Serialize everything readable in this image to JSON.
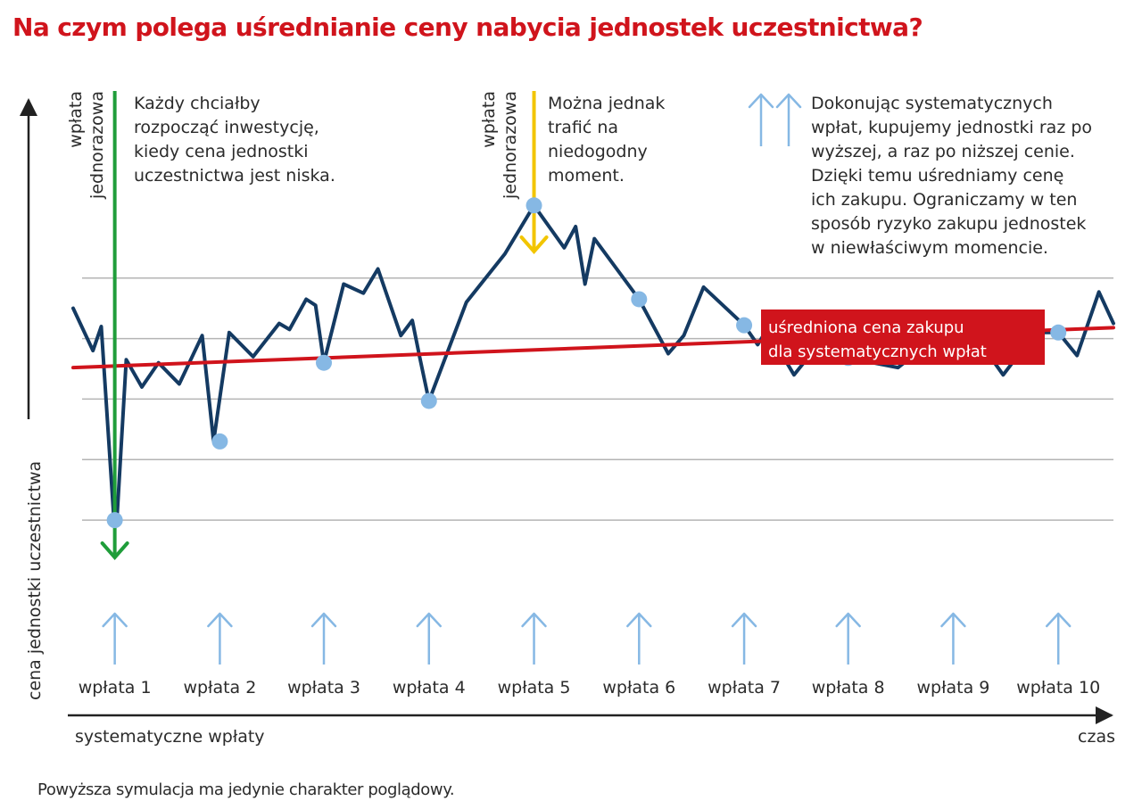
{
  "title": "Na czym polega uśrednianie ceny nabycia jednostek uczestnictwa?",
  "footnote": "Powyższa symulacja ma jedynie charakter poglądowy.",
  "colors": {
    "title": "#d0141c",
    "price_line": "#143a62",
    "avg_line": "#d0141c",
    "purchase_marker": "#86b8e4",
    "lump_good": "#1f9d3a",
    "lump_bad": "#f2c500",
    "grid": "#b4b4b4",
    "axis": "#222222",
    "text": "#2b2b2b"
  },
  "annotations": {
    "lump_sum_good": {
      "label": [
        "wpłata",
        "jednorazowa"
      ],
      "text": [
        "Każdy chciałby",
        "rozpocząć inwestycję,",
        "kiedy cena jednostki",
        "uczestnictwa jest niska."
      ]
    },
    "lump_sum_bad": {
      "label": [
        "wpłata",
        "jednorazowa"
      ],
      "text": [
        "Można jednak",
        "trafić na",
        "niedogodny",
        "moment."
      ]
    },
    "systematic": {
      "text": [
        "Dokonując systematycznych",
        "wpłat, kupujemy jednostki raz po",
        "wyższej, a raz po niższej cenie.",
        "Dzięki temu uśredniamy cenę",
        "ich zakupu. Ograniczamy w ten",
        "sposób ryzyko zakupu jednostek",
        "w niewłaściwym momencie."
      ]
    },
    "avg_price_box": [
      "uśredniona cena zakupu",
      "dla systematycznych wpłat"
    ]
  },
  "chart_data": {
    "type": "line",
    "title": "Na czym polega uśrednianie ceny nabycia jednostek uczestnictwa?",
    "xlabel_left": "systematyczne wpłaty",
    "xlabel_right": "czas",
    "ylabel": "cena jednostki uczestnictwa",
    "xlim": [
      0,
      100
    ],
    "ylim": [
      0,
      7
    ],
    "grid": true,
    "categories": [
      "wpłata 1",
      "wpłata 2",
      "wpłata 3",
      "wpłata 4",
      "wpłata 5",
      "wpłata 6",
      "wpłata 7",
      "wpłata 8",
      "wpłata 9",
      "wpłata 10"
    ],
    "purchase_x": [
      4.0,
      14.1,
      24.1,
      34.2,
      44.3,
      54.4,
      64.5,
      74.5,
      84.6,
      94.7
    ],
    "purchase_y": [
      1.0,
      2.3,
      3.6,
      2.97,
      6.2,
      4.65,
      4.22,
      3.68,
      3.88,
      4.1
    ],
    "series": [
      {
        "key": "price",
        "x": [
          0.0,
          1.9,
          2.7,
          3.9,
          4.2,
          5.1,
          6.6,
          8.2,
          10.2,
          12.4,
          13.5,
          15.0,
          17.3,
          19.8,
          20.8,
          22.4,
          23.3,
          24.1,
          26.0,
          27.9,
          29.3,
          31.5,
          32.6,
          33.3,
          34.2,
          37.8,
          41.5,
          44.3,
          47.2,
          48.3,
          49.2,
          50.1,
          54.4,
          57.2,
          58.7,
          60.6,
          64.5,
          65.8,
          66.7,
          69.3,
          72.0,
          73.6,
          74.5,
          79.3,
          81.2,
          84.6,
          86.5,
          89.4,
          92.5,
          94.7,
          96.5,
          98.6,
          100.0
        ],
        "y": [
          4.5,
          3.8,
          4.2,
          1.05,
          1.0,
          3.65,
          3.2,
          3.6,
          3.25,
          4.05,
          2.3,
          4.1,
          3.7,
          4.25,
          4.15,
          4.65,
          4.55,
          3.6,
          4.9,
          4.75,
          5.15,
          4.05,
          4.3,
          3.7,
          2.97,
          4.6,
          5.4,
          6.2,
          5.5,
          5.85,
          4.9,
          5.65,
          4.65,
          3.75,
          4.05,
          4.85,
          4.22,
          3.9,
          4.15,
          3.4,
          3.98,
          3.8,
          3.68,
          3.52,
          3.78,
          3.88,
          4.1,
          3.4,
          4.1,
          4.1,
          3.72,
          4.77,
          4.25
        ]
      },
      {
        "key": "average",
        "name": "uśredniona cena zakupu dla systematycznych wpłat",
        "x": [
          0,
          100
        ],
        "y": [
          3.52,
          4.18
        ]
      }
    ],
    "lump_sum_x": [
      4.0,
      44.3
    ]
  }
}
